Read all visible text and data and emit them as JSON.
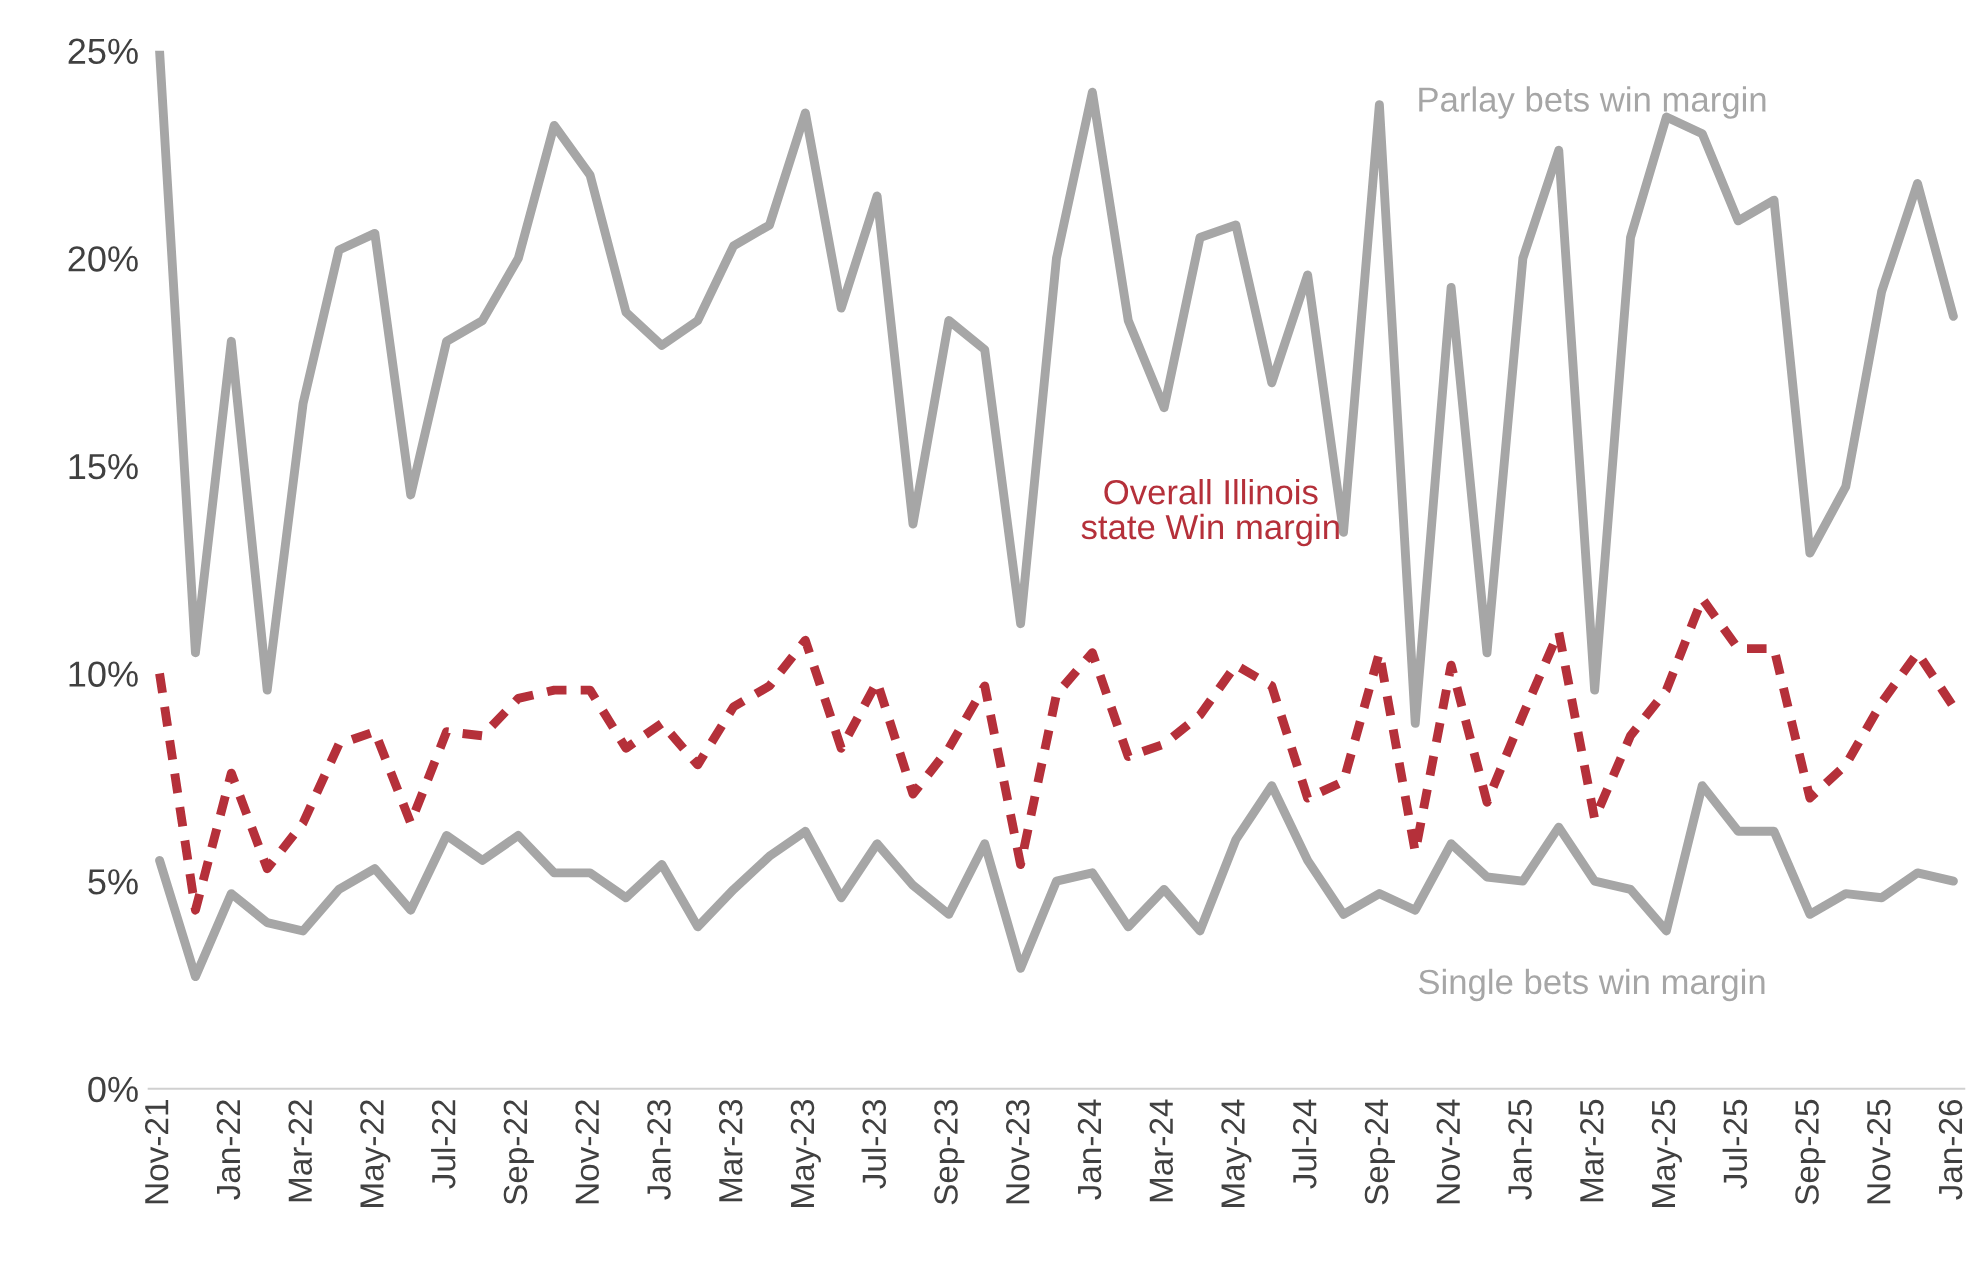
{
  "chart_data": {
    "type": "line",
    "categories": [
      "Nov-21",
      null,
      "Jan-22",
      null,
      "Mar-22",
      null,
      "May-22",
      null,
      "Jul-22",
      null,
      "Sep-22",
      null,
      "Nov-22",
      null,
      "Jan-23",
      null,
      "Mar-23",
      null,
      "May-23",
      null,
      "Jul-23",
      null,
      "Sep-23",
      null,
      "Nov-23",
      null,
      "Jan-24",
      null,
      "Mar-24",
      null,
      "May-24",
      null,
      "Jul-24",
      null,
      "Sep-24",
      null,
      "Nov-24",
      null,
      "Jan-25",
      null,
      "Mar-25",
      null,
      "May-25",
      null,
      "Jul-25",
      null,
      "Sep-25",
      null,
      "Nov-25",
      null,
      "Jan-26"
    ],
    "series": [
      {
        "name": "Parlay bets win margin",
        "color": "#a6a6a6",
        "line_style": "solid",
        "values": [
          25.0,
          10.5,
          18.0,
          9.6,
          16.5,
          20.2,
          20.6,
          14.3,
          18.0,
          18.5,
          20.0,
          23.2,
          22.0,
          18.7,
          17.9,
          18.5,
          20.3,
          20.8,
          23.5,
          18.8,
          21.5,
          13.6,
          18.5,
          17.8,
          11.2,
          20.0,
          24.0,
          18.5,
          16.4,
          20.5,
          20.8,
          17.0,
          19.6,
          13.4,
          23.7,
          8.8,
          19.3,
          10.5,
          20.0,
          22.6,
          9.6,
          20.5,
          23.4,
          23.0,
          20.9,
          21.4,
          12.9,
          14.5,
          19.2,
          21.8,
          18.6
        ]
      },
      {
        "name": "Overall Illinois state Win margin",
        "color": "#b5303a",
        "line_style": "dashed",
        "values": [
          10.0,
          4.3,
          7.6,
          5.3,
          6.4,
          8.3,
          8.6,
          6.4,
          8.6,
          8.5,
          9.4,
          9.6,
          9.6,
          8.2,
          8.8,
          7.8,
          9.2,
          9.7,
          10.8,
          8.2,
          9.8,
          7.1,
          8.2,
          9.7,
          5.4,
          9.5,
          10.5,
          8.0,
          8.3,
          9.0,
          10.2,
          9.7,
          7.0,
          7.4,
          10.5,
          5.7,
          10.2,
          6.9,
          9.0,
          11.0,
          6.5,
          8.5,
          9.6,
          11.8,
          10.6,
          10.6,
          7.0,
          7.8,
          9.3,
          10.5,
          9.2
        ]
      },
      {
        "name": "Single bets win margin",
        "color": "#a6a6a6",
        "line_style": "solid",
        "values": [
          5.5,
          2.7,
          4.7,
          4.0,
          3.8,
          4.8,
          5.3,
          4.3,
          6.1,
          5.5,
          6.1,
          5.2,
          5.2,
          4.6,
          5.4,
          3.9,
          4.8,
          5.6,
          6.2,
          4.6,
          5.9,
          4.9,
          4.2,
          5.9,
          2.9,
          5.0,
          5.2,
          3.9,
          4.8,
          3.8,
          6.0,
          7.3,
          5.5,
          4.2,
          4.7,
          4.3,
          5.9,
          5.1,
          5.0,
          6.3,
          5.0,
          4.8,
          3.8,
          7.3,
          6.2,
          6.2,
          4.2,
          4.7,
          4.6,
          5.2,
          5.0
        ]
      }
    ],
    "ylim": [
      0,
      25
    ],
    "yticks": [
      {
        "value": 0,
        "label": "0%"
      },
      {
        "value": 5,
        "label": "5%"
      },
      {
        "value": 10,
        "label": "10%"
      },
      {
        "value": 15,
        "label": "15%"
      },
      {
        "value": 20,
        "label": "20%"
      },
      {
        "value": 25,
        "label": "25%"
      }
    ],
    "grid": false,
    "legend": false,
    "marker": "none"
  }
}
